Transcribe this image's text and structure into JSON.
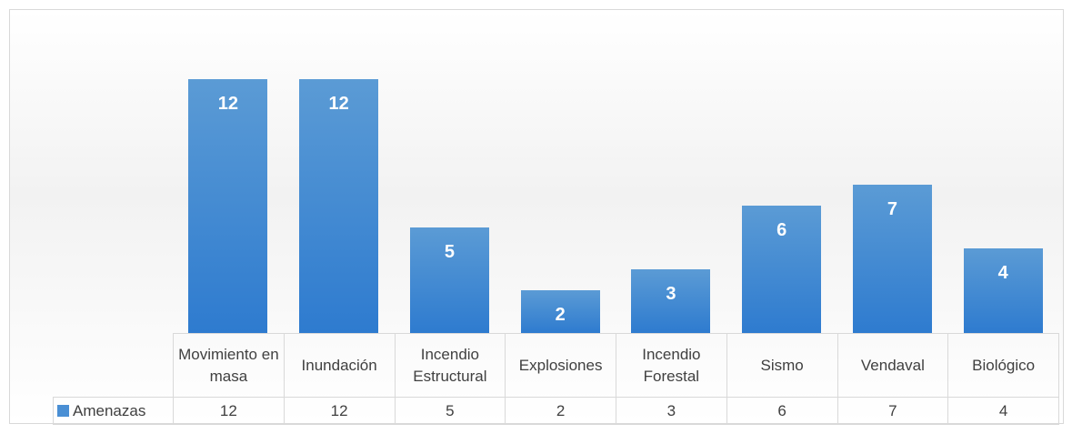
{
  "chart_data": {
    "type": "bar",
    "categories": [
      "Movimiento en masa",
      "Inundación",
      "Incendio Estructural",
      "Explosiones",
      "Incendio Forestal",
      "Sismo",
      "Vendaval",
      "Biológico"
    ],
    "series": [
      {
        "name": "Amenazas",
        "color": "#4a8fd4",
        "values": [
          12,
          12,
          5,
          2,
          3,
          6,
          7,
          4
        ]
      }
    ],
    "ylim": [
      0,
      14
    ]
  }
}
